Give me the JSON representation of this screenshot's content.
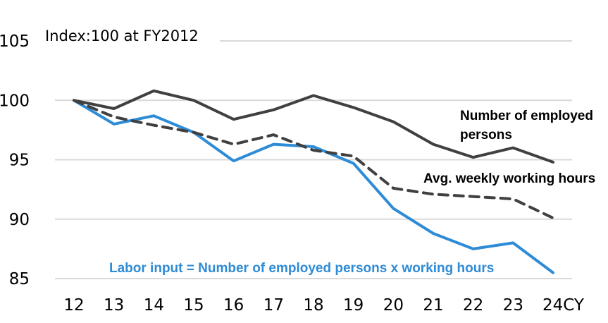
{
  "chart_data": {
    "type": "line",
    "title": "",
    "annotation": "Index:100 at FY2012",
    "xlabel": "",
    "ylabel": "",
    "categories": [
      "12",
      "13",
      "14",
      "15",
      "16",
      "17",
      "18",
      "19",
      "20",
      "21",
      "22",
      "23",
      "24CY"
    ],
    "ylim": [
      85,
      105
    ],
    "yticks": [
      "105",
      "100",
      "95",
      "90",
      "85"
    ],
    "grid": true,
    "legend": "inline labels",
    "series": [
      {
        "name": "Number of employed persons",
        "label_lines": [
          "Number of employed",
          "persons"
        ],
        "color": "#404040",
        "style": "solid",
        "values": [
          100.0,
          99.3,
          100.8,
          100.0,
          98.4,
          99.2,
          100.4,
          99.4,
          98.2,
          96.3,
          95.2,
          96.0,
          94.8
        ]
      },
      {
        "name": "Avg. weekly working hours",
        "label_lines": [
          "Avg. weekly working hours"
        ],
        "color": "#404040",
        "style": "dashed",
        "values": [
          100.0,
          98.6,
          97.9,
          97.3,
          96.3,
          97.1,
          95.8,
          95.3,
          92.6,
          92.1,
          91.9,
          91.7,
          90.1
        ]
      },
      {
        "name": "Labor input = Number of employed persons x working hours",
        "label_lines": [
          "Labor input = Number of employed persons x working hours"
        ],
        "color": "#2E8BD6",
        "style": "solid",
        "values": [
          100.0,
          98.0,
          98.7,
          97.3,
          94.9,
          96.3,
          96.1,
          94.7,
          90.9,
          88.8,
          87.5,
          88.0,
          85.5
        ]
      }
    ]
  }
}
